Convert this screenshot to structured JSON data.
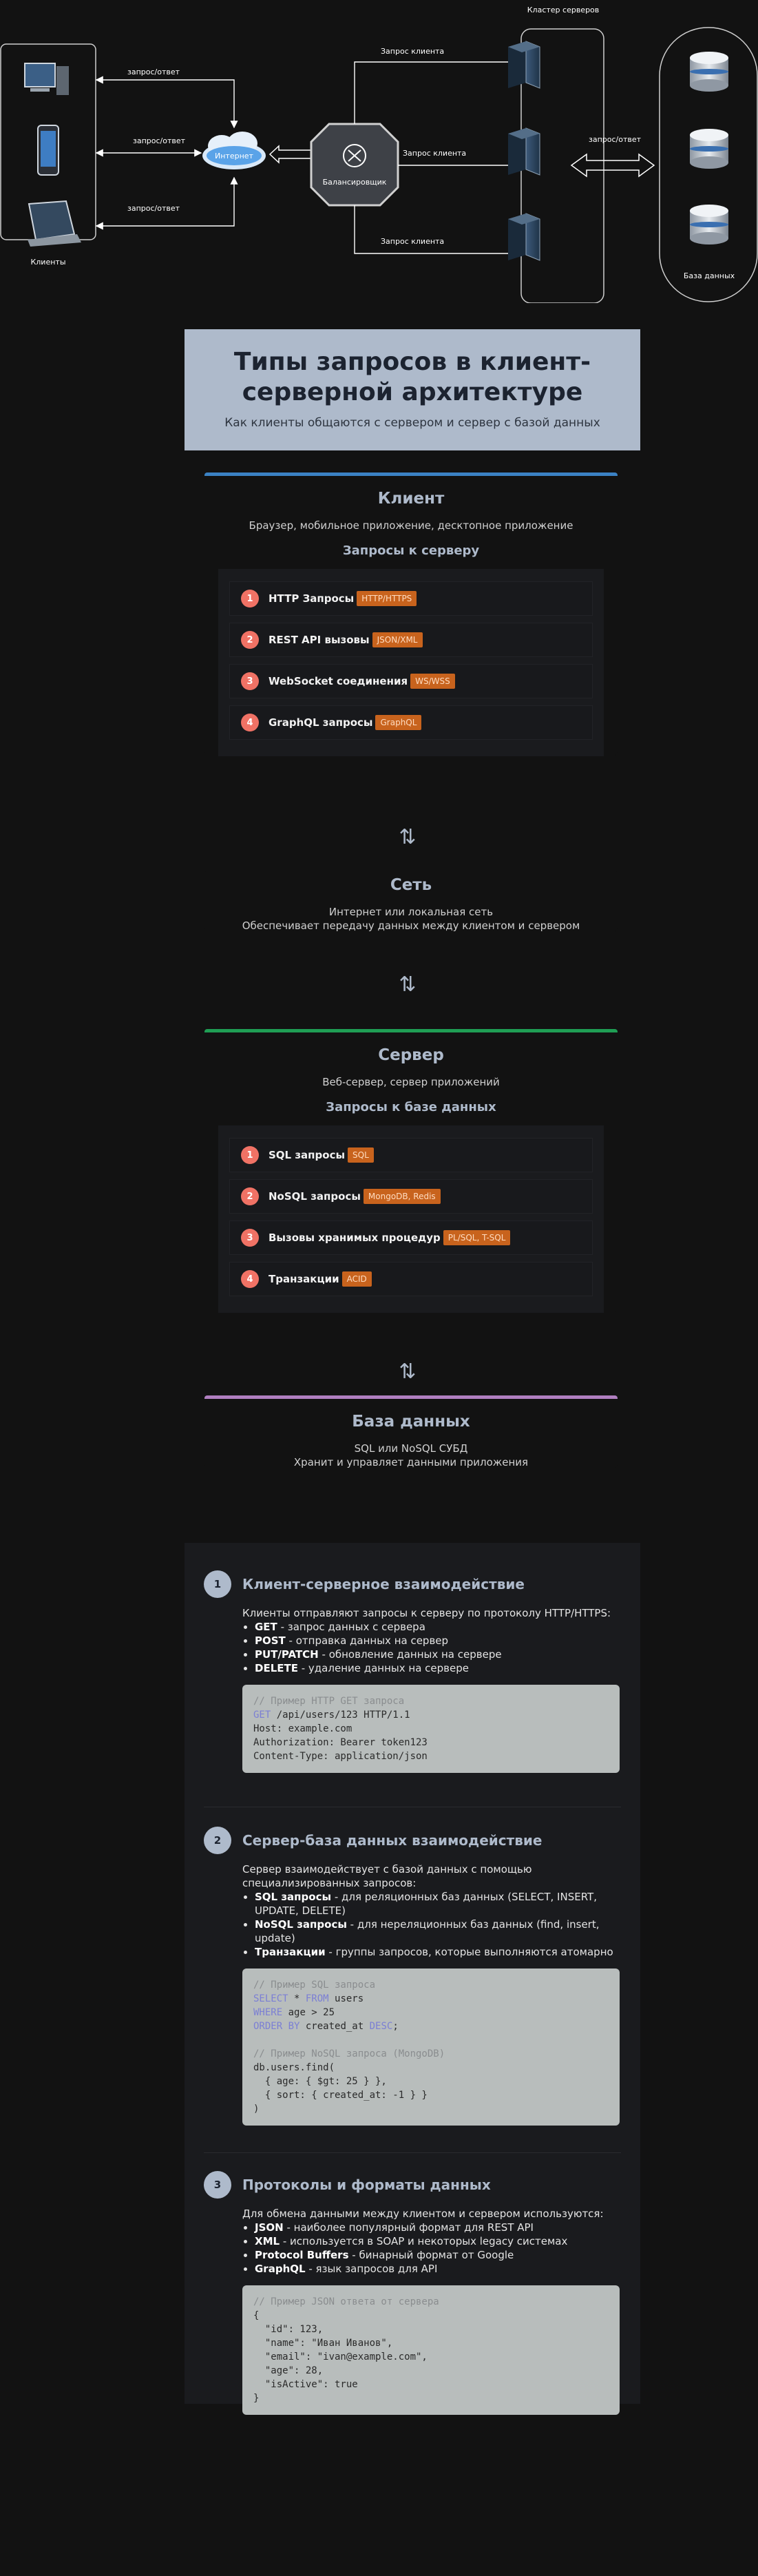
{
  "diagram": {
    "clients_label": "Клиенты",
    "internet_label": "Интернет",
    "balancer_label": "Балансировщик",
    "cluster_label": "Кластер серверов",
    "db_label": "База данных",
    "edge_req_resp": "запрос/ответ",
    "edge_client_req": "Запрос клиента",
    "edge_db_req_resp": "запрос/ответ"
  },
  "hero": {
    "title": "Типы запросов в клиент-серверной архитектуре",
    "subtitle": "Как клиенты общаются с сервером и сервер с базой данных"
  },
  "client": {
    "title": "Клиент",
    "desc": "Браузер, мобильное приложение, десктопное приложение",
    "heading": "Запросы к серверу",
    "accent": "#3b82c4",
    "items": [
      {
        "num": "1",
        "label": "HTTP Запросы",
        "tag": "HTTP/HTTPS"
      },
      {
        "num": "2",
        "label": "REST API вызовы",
        "tag": "JSON/XML"
      },
      {
        "num": "3",
        "label": "WebSocket соединения",
        "tag": "WS/WSS"
      },
      {
        "num": "4",
        "label": "GraphQL запросы",
        "tag": "GraphQL"
      }
    ]
  },
  "network": {
    "title": "Сеть",
    "line1": "Интернет или локальная сеть",
    "line2": "Обеспечивает передачу данных между клиентом и сервером"
  },
  "server": {
    "title": "Сервер",
    "desc": "Веб-сервер, сервер приложений",
    "heading": "Запросы к базе данных",
    "accent": "#1f9e54",
    "items": [
      {
        "num": "1",
        "label": "SQL запросы",
        "tag": "SQL"
      },
      {
        "num": "2",
        "label": "NoSQL запросы",
        "tag": "MongoDB, Redis"
      },
      {
        "num": "3",
        "label": "Вызовы хранимых процедур",
        "tag": "PL/SQL, T-SQL"
      },
      {
        "num": "4",
        "label": "Транзакции",
        "tag": "ACID"
      }
    ]
  },
  "database": {
    "title": "База данных",
    "line1": "SQL или NoSQL СУБД",
    "line2": "Хранит и управляет данными приложения",
    "accent": "#b07fc0"
  },
  "explain": {
    "s1": {
      "num": "1",
      "title": "Клиент-серверное взаимодействие",
      "intro": "Клиенты отправляют запросы к серверу по протоколу HTTP/HTTPS:",
      "items": [
        {
          "b": "GET",
          "t": " - запрос данных с сервера"
        },
        {
          "b": "POST",
          "t": " - отправка данных на сервер"
        },
        {
          "b": "PUT/PATCH",
          "t": " - обновление данных на сервере"
        },
        {
          "b": "DELETE",
          "t": " - удаление данных на сервере"
        }
      ],
      "code_comment": "// Пример HTTP GET запроса",
      "code_line1_kw": "GET",
      "code_line1": " /api/users/123 HTTP/1.1",
      "code_line2": "Host: example.com",
      "code_line3": "Authorization: Bearer token123",
      "code_line4": "Content-Type: application/json"
    },
    "s2": {
      "num": "2",
      "title": "Сервер-база данных взаимодействие",
      "intro": "Сервер взаимодействует с базой данных с помощью специализированных запросов:",
      "items": [
        {
          "b": "SQL запросы",
          "t": " - для реляционных баз данных (SELECT, INSERT, UPDATE, DELETE)"
        },
        {
          "b": "NoSQL запросы",
          "t": " - для нереляционных баз данных (find, insert, update)"
        },
        {
          "b": "Транзакции",
          "t": " - группы запросов, которые выполняются атомарно"
        }
      ],
      "sql_comment": "// Пример SQL запроса",
      "sql_select": "SELECT",
      "sql_star": " * ",
      "sql_from": "FROM",
      "sql_table": " users",
      "sql_where": "WHERE",
      "sql_cond": " age > 25",
      "sql_order": "ORDER BY",
      "sql_col": " created_at ",
      "sql_desc": "DESC",
      "sql_end": ";",
      "nosql_comment": "// Пример NoSQL запроса (MongoDB)",
      "nosql_l1": "db.users.find(",
      "nosql_l2": "  { age: { $gt: 25 } },",
      "nosql_l3": "  { sort: { created_at: -1 } }",
      "nosql_l4": ")"
    },
    "s3": {
      "num": "3",
      "title": "Протоколы и форматы данных",
      "intro": "Для обмена данными между клиентом и сервером используются:",
      "items": [
        {
          "b": "JSON",
          "t": " - наиболее популярный формат для REST API"
        },
        {
          "b": "XML",
          "t": " - используется в SOAP и некоторых legacy системах"
        },
        {
          "b": "Protocol Buffers",
          "t": " - бинарный формат от Google"
        },
        {
          "b": "GraphQL",
          "t": " - язык запросов для API"
        }
      ],
      "json_comment": "// Пример JSON ответа от сервера",
      "json_l1": "{",
      "json_l2": "  \"id\": 123,",
      "json_l3": "  \"name\": \"Иван Иванов\",",
      "json_l4": "  \"email\": \"ivan@example.com\",",
      "json_l5": "  \"age\": 28,",
      "json_l6": "  \"isActive\": true",
      "json_l7": "}"
    }
  }
}
